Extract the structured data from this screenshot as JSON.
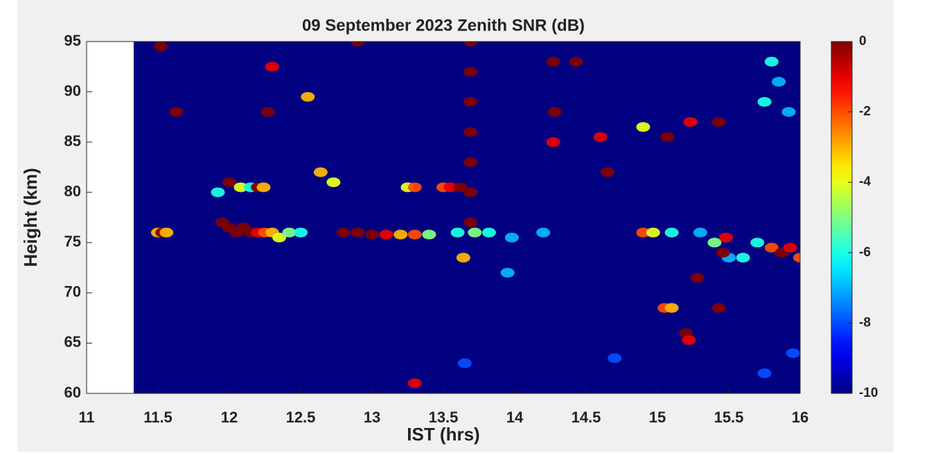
{
  "chart_data": {
    "type": "heatmap",
    "title": "09 September 2023 Zenith SNR (dB)",
    "xlabel": "IST (hrs)",
    "ylabel": "Height (km)",
    "colormap": "jet",
    "xlim": [
      11,
      16
    ],
    "ylim": [
      60,
      95
    ],
    "xticks": [
      11,
      11.5,
      12,
      12.5,
      13,
      13.5,
      14,
      14.5,
      15,
      15.5,
      16
    ],
    "yticks": [
      60,
      65,
      70,
      75,
      80,
      85,
      90,
      95
    ],
    "zlim": [
      -10,
      0
    ],
    "zticks": [
      0,
      -2,
      -4,
      -6,
      -8,
      -10
    ],
    "x_start": 11.33,
    "x": [
      11.5,
      11.53,
      11.56,
      11.95,
      12.0,
      12.05,
      12.1,
      12.15,
      12.2,
      12.25,
      12.3,
      12.35,
      12.42,
      12.5,
      11.92,
      12.0,
      12.08,
      12.15,
      12.2,
      12.24,
      12.8,
      12.9,
      13.0,
      13.1,
      13.2,
      13.3,
      13.4,
      13.25,
      13.3,
      13.5,
      13.55,
      13.62,
      13.69,
      13.69,
      13.69,
      13.69,
      13.69,
      13.69,
      13.69,
      13.6,
      13.72,
      13.82,
      13.98,
      14.2,
      13.95,
      14.9,
      14.97,
      15.1,
      15.3,
      15.4,
      15.7,
      15.8,
      15.87,
      15.93,
      16.0,
      15.6,
      15.5,
      15.05,
      15.1,
      15.2,
      15.22,
      15.43,
      15.46,
      15.28,
      15.48,
      11.52,
      11.63,
      12.27,
      12.3,
      12.55,
      12.64,
      12.73,
      12.9,
      13.3,
      13.64,
      14.27,
      14.28,
      14.27,
      14.43,
      14.6,
      14.65,
      14.9,
      15.07,
      15.23,
      15.43,
      15.75,
      15.8,
      15.92,
      15.85,
      14.7,
      13.65,
      15.75,
      15.95
    ],
    "y": [
      76,
      76,
      76,
      77,
      76.5,
      76,
      76.5,
      76,
      76,
      76,
      76,
      75.5,
      76,
      76,
      80,
      81,
      80.5,
      80.5,
      80.5,
      80.5,
      76,
      76,
      75.8,
      75.8,
      75.8,
      75.8,
      75.8,
      80.5,
      80.5,
      80.5,
      80.5,
      80.5,
      95,
      92,
      89,
      86,
      83,
      80,
      77,
      76,
      76,
      76,
      75.5,
      76,
      72,
      76,
      76,
      76,
      76,
      75,
      75,
      74.5,
      74,
      74.5,
      73.5,
      73.5,
      73.5,
      68.5,
      68.5,
      66,
      65.3,
      68.5,
      74,
      71.5,
      75.5,
      94.5,
      88,
      88,
      92.5,
      89.5,
      82,
      81,
      95,
      61,
      73.5,
      93,
      88,
      85,
      93,
      85.5,
      82,
      86.5,
      85.5,
      87,
      87,
      89,
      93,
      88,
      91,
      63.5,
      63,
      62,
      64
    ],
    "values": [
      -3,
      0,
      -3,
      0,
      0,
      0,
      0,
      0,
      -1,
      -2,
      -3,
      -4,
      -5,
      -6,
      -6,
      0,
      -4,
      -6,
      0,
      -3,
      0,
      0,
      0,
      -1,
      -3,
      -2,
      -5,
      -4,
      -2,
      -2,
      -1,
      0,
      0,
      0,
      0,
      0,
      0,
      0,
      0,
      -6,
      -5,
      -6,
      -7,
      -7,
      -7,
      -2,
      -4,
      -6,
      -7,
      -5,
      -6,
      -2,
      0,
      -1,
      -2,
      -6,
      -7,
      -2,
      -3,
      0,
      -1,
      0,
      0,
      0,
      -1,
      0,
      0,
      0,
      -1,
      -3,
      -3,
      -4,
      0,
      -1,
      -3,
      0,
      0,
      -1,
      0,
      -1,
      0,
      -4,
      0,
      -1,
      0,
      -6,
      -6,
      -7,
      -7,
      -8,
      -8,
      -8,
      -8
    ]
  }
}
